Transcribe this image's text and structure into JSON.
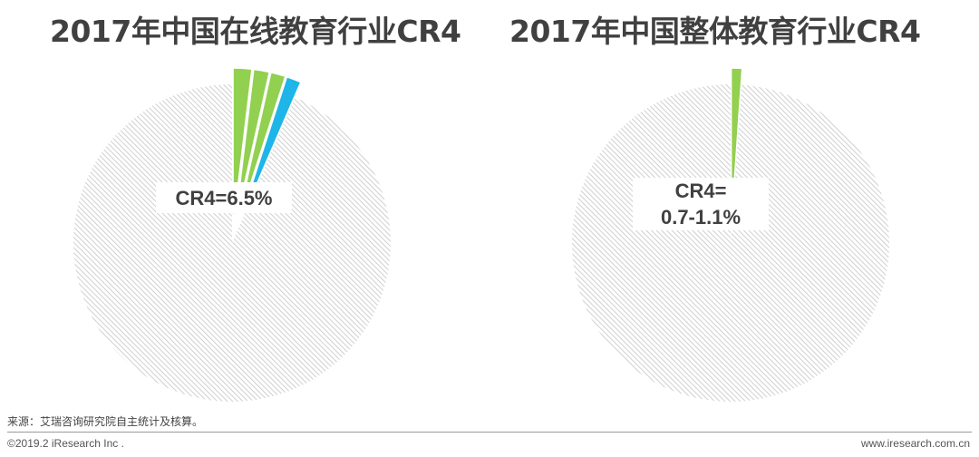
{
  "chart_data": [
    {
      "type": "pie",
      "title": "2017年中国在线教育行业CR4",
      "annotation": "CR4=6.5%",
      "slices": [
        {
          "value": 1.9,
          "color": "#92d050"
        },
        {
          "value": 1.6,
          "color": "#92d050"
        },
        {
          "value": 1.5,
          "color": "#92d050"
        },
        {
          "value": 1.5,
          "color": "#1fb5e8"
        },
        {
          "value": 93.5,
          "color": "#e2e2e2",
          "pattern": "hatch"
        }
      ]
    },
    {
      "type": "pie",
      "title": "2017年中国整体教育行业CR4",
      "annotation": "CR4=\n0.7-1.1%",
      "slices": [
        {
          "value": 1.1,
          "color": "#92d050"
        },
        {
          "value": 98.9,
          "color": "#e2e2e2",
          "pattern": "hatch"
        }
      ]
    }
  ],
  "footer": {
    "source": "来源：艾瑞咨询研究院自主统计及核算。",
    "copyright": "©2019.2 iResearch Inc .",
    "website": "www.iresearch.com.cn"
  }
}
